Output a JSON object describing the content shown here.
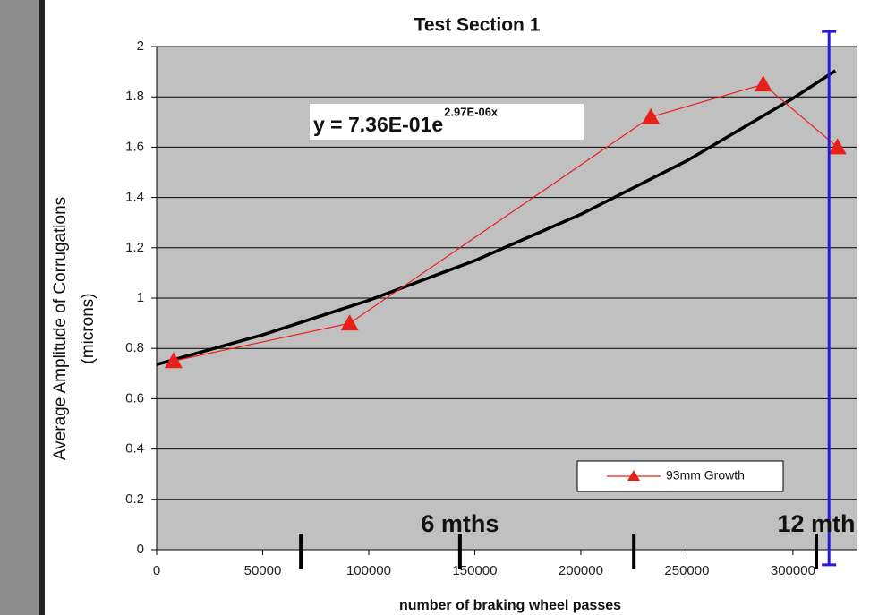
{
  "chart_data": {
    "type": "line",
    "title": "Test Section 1",
    "y_label": [
      "Average Amplitude of Corrugations",
      "(microns)"
    ],
    "x_label": "number of braking wheel passes",
    "xlim": [
      0,
      330000
    ],
    "xticks": [
      0,
      50000,
      100000,
      150000,
      200000,
      250000,
      300000
    ],
    "ylim": [
      0,
      2
    ],
    "yticks": [
      0,
      0.2,
      0.4,
      0.6,
      0.8,
      1,
      1.2,
      1.4,
      1.6,
      1.8,
      2
    ],
    "grid": true,
    "background": "#c0c0c0",
    "legend_position": "lower right",
    "series": [
      {
        "name": "93mm Growth",
        "color": "#e8201a",
        "marker": "triangle",
        "x": [
          8000,
          91000,
          233000,
          286000,
          321000
        ],
        "values": [
          0.75,
          0.9,
          1.72,
          1.85,
          1.6
        ]
      }
    ],
    "trendline": {
      "color": "#000000",
      "x": [
        0,
        50000,
        100000,
        150000,
        200000,
        250000,
        300000,
        320000
      ],
      "values": [
        0.736,
        0.854,
        0.991,
        1.149,
        1.333,
        1.546,
        1.794,
        1.904
      ],
      "equation": "y = 7.36E-01e",
      "exponent": "2.97E-06x"
    },
    "annotations": [
      {
        "text": "6 mths",
        "x": 143000
      },
      {
        "text": "12 mth",
        "x": 311000
      }
    ],
    "month_markers": [
      68000,
      143000,
      225000,
      311000
    ],
    "highlight_x": 317000,
    "highlight_color": "#2a1ad8"
  }
}
